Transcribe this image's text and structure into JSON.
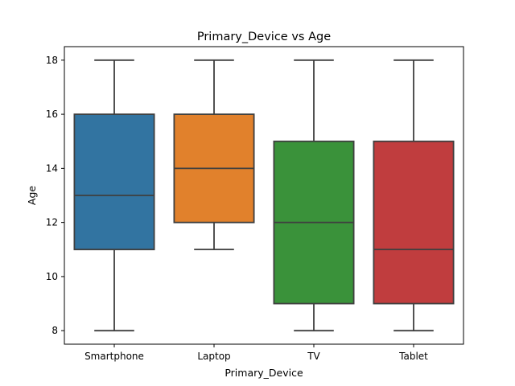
{
  "chart_data": {
    "type": "box",
    "title": "Primary_Device vs Age",
    "xlabel": "Primary_Device",
    "ylabel": "Age",
    "ylim": [
      7.5,
      18.5
    ],
    "yticks": [
      8,
      10,
      12,
      14,
      16,
      18
    ],
    "grid": false,
    "categories": [
      "Smartphone",
      "Laptop",
      "TV",
      "Tablet"
    ],
    "boxes": [
      {
        "category": "Smartphone",
        "whisker_low": 8,
        "q1": 11,
        "median": 13,
        "q3": 16,
        "whisker_high": 18,
        "color": "#3274a1"
      },
      {
        "category": "Laptop",
        "whisker_low": 11,
        "q1": 12,
        "median": 14,
        "q3": 16,
        "whisker_high": 18,
        "color": "#e1812c"
      },
      {
        "category": "TV",
        "whisker_low": 8,
        "q1": 9,
        "median": 12,
        "q3": 15,
        "whisker_high": 18,
        "color": "#3a923a"
      },
      {
        "category": "Tablet",
        "whisker_low": 8,
        "q1": 9,
        "median": 11,
        "q3": 15,
        "whisker_high": 18,
        "color": "#c03d3e"
      }
    ]
  }
}
